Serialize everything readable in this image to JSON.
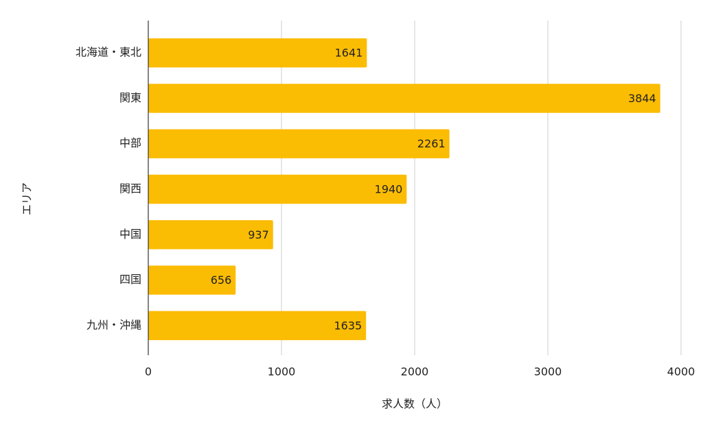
{
  "chart_data": {
    "type": "bar",
    "orientation": "horizontal",
    "x_label": "求人数（人）",
    "y_label": "エリア",
    "categories": [
      "北海道・東北",
      "関東",
      "中部",
      "関西",
      "中国",
      "四国",
      "九州・沖縄"
    ],
    "values": [
      1641,
      3844,
      2261,
      1940,
      937,
      656,
      1635
    ],
    "color": "#fbbc04",
    "xlim": [
      0,
      4000
    ],
    "xticks": [
      0,
      1000,
      2000,
      3000,
      4000
    ],
    "grid": true,
    "data_labels": true
  }
}
